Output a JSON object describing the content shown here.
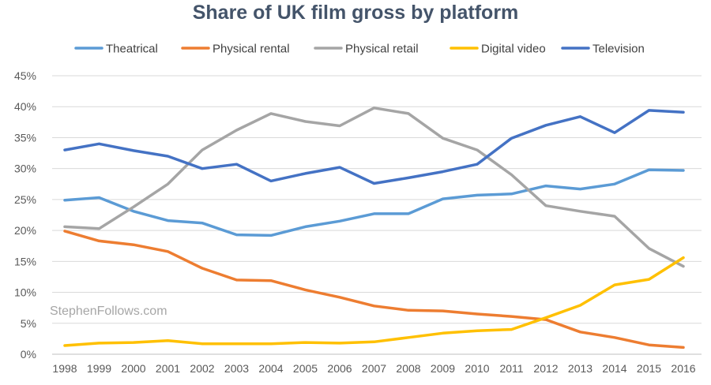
{
  "chart_data": {
    "type": "line",
    "title": "Share of UK film gross by platform",
    "xlabel": "",
    "ylabel": "",
    "ylim": [
      0,
      45
    ],
    "yticks": [
      "0%",
      "5%",
      "10%",
      "15%",
      "20%",
      "25%",
      "30%",
      "35%",
      "40%",
      "45%"
    ],
    "grid": true,
    "legend_position": "top",
    "watermark": "StephenFollows.com",
    "categories": [
      "1998",
      "1999",
      "2000",
      "2001",
      "2002",
      "2003",
      "2004",
      "2005",
      "2006",
      "2007",
      "2008",
      "2009",
      "2010",
      "2011",
      "2012",
      "2013",
      "2014",
      "2015",
      "2016"
    ],
    "series": [
      {
        "name": "Theatrical",
        "color": "#5b9bd5",
        "values": [
          24.9,
          25.3,
          23.1,
          21.6,
          21.2,
          19.3,
          19.2,
          20.6,
          21.5,
          22.7,
          22.7,
          25.1,
          25.7,
          25.9,
          27.2,
          26.7,
          27.5,
          29.8,
          29.7
        ]
      },
      {
        "name": "Physical rental",
        "color": "#ed7d31",
        "values": [
          19.9,
          18.3,
          17.7,
          16.6,
          13.9,
          12.0,
          11.9,
          10.4,
          9.2,
          7.8,
          7.1,
          7.0,
          6.5,
          6.1,
          5.6,
          3.6,
          2.7,
          1.5,
          1.1
        ]
      },
      {
        "name": "Physical retail",
        "color": "#a5a5a5",
        "values": [
          20.6,
          20.3,
          23.8,
          27.5,
          33.0,
          36.2,
          38.9,
          37.6,
          36.9,
          39.8,
          38.9,
          34.9,
          33.0,
          29.0,
          24.0,
          23.1,
          22.3,
          17.1,
          14.2
        ]
      },
      {
        "name": "Digital video",
        "color": "#ffc000",
        "values": [
          1.4,
          1.8,
          1.9,
          2.2,
          1.7,
          1.7,
          1.7,
          1.9,
          1.8,
          2.0,
          2.7,
          3.4,
          3.8,
          4.0,
          5.9,
          7.9,
          11.2,
          12.1,
          15.6
        ]
      },
      {
        "name": "Television",
        "color": "#4472c4",
        "values": [
          33.0,
          34.0,
          32.9,
          32.0,
          30.0,
          30.7,
          28.0,
          29.2,
          30.2,
          27.6,
          28.5,
          29.5,
          30.7,
          34.9,
          37.0,
          38.4,
          35.8,
          39.4,
          39.1
        ]
      }
    ]
  }
}
